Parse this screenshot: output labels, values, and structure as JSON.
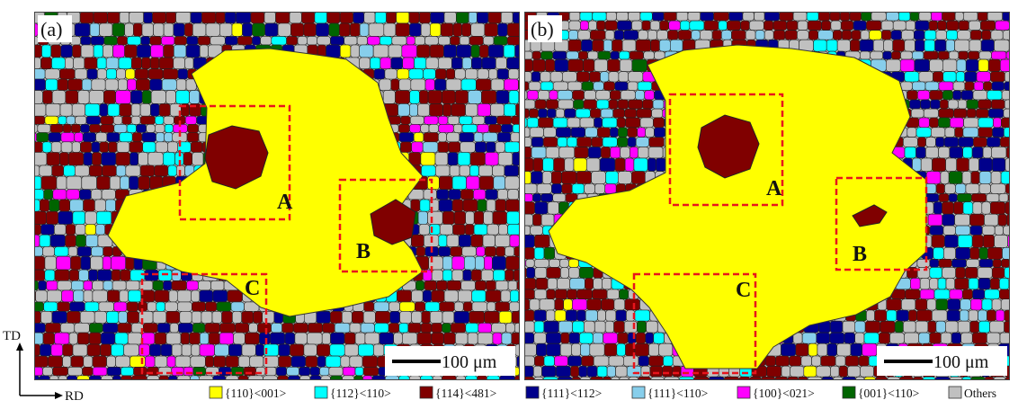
{
  "panels": [
    {
      "label": "(a)",
      "regions": [
        "A",
        "B",
        "C"
      ],
      "scale_bar": "100 μm"
    },
    {
      "label": "(b)",
      "regions": [
        "A",
        "B",
        "C"
      ],
      "scale_bar": "100 μm"
    }
  ],
  "axes": {
    "vertical": "TD",
    "horizontal": "RD"
  },
  "legend": [
    {
      "label": "{110}<001>",
      "color": "#ffff00"
    },
    {
      "label": "{112}<110>",
      "color": "#00ffff"
    },
    {
      "label": "{114}<481>",
      "color": "#800000"
    },
    {
      "label": "{111}<112>",
      "color": "#00008b"
    },
    {
      "label": "{111}<110>",
      "color": "#87ceeb"
    },
    {
      "label": "{100}<021>",
      "color": "#ff00ff"
    },
    {
      "label": "{001}<110>",
      "color": "#006400"
    },
    {
      "label": "Others",
      "color": "#c0c0c0"
    }
  ]
}
